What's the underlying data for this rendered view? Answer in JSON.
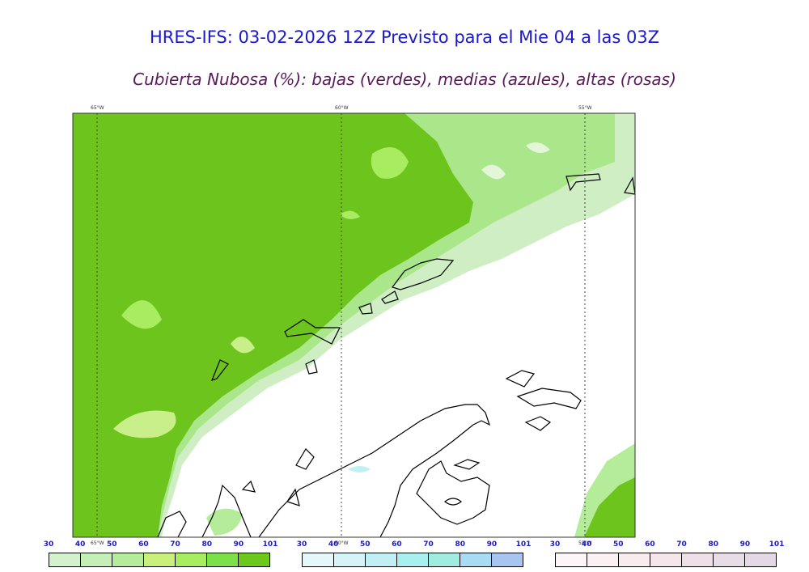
{
  "header": {
    "title": "HRES-IFS: 03-02-2026 12Z Previsto para el Mie 04 a las 03Z",
    "subtitle": "Cubierta Nubosa (%): bajas (verdes), medias (azules), altas (rosas)"
  },
  "map": {
    "longitude_labels": [
      "65°W",
      "60°W",
      "55°W"
    ]
  },
  "colorbars": [
    {
      "name": "low",
      "ticks": [
        "30",
        "40",
        "50",
        "60",
        "70",
        "80",
        "90",
        "101"
      ],
      "colors": [
        "#d4f0cc",
        "#c4efb6",
        "#b4ec99",
        "#c8f07a",
        "#a8ec60",
        "#7ce04a",
        "#6cc81a"
      ]
    },
    {
      "name": "mid",
      "ticks": [
        "30",
        "40",
        "50",
        "60",
        "70",
        "80",
        "90",
        "101"
      ],
      "colors": [
        "#e4f8fa",
        "#d4f4f8",
        "#c0f0f4",
        "#a8f0f0",
        "#a0ece0",
        "#a8dcf4",
        "#a8c4f0"
      ]
    },
    {
      "name": "high",
      "ticks": [
        "30",
        "40",
        "50",
        "60",
        "70",
        "80",
        "90",
        "101"
      ],
      "colors": [
        "#fdf6f8",
        "#fbf0f2",
        "#f8ecee",
        "#f4e6ea",
        "#eee0e6",
        "#e8dce6",
        "#e4d8e6"
      ]
    }
  ]
}
